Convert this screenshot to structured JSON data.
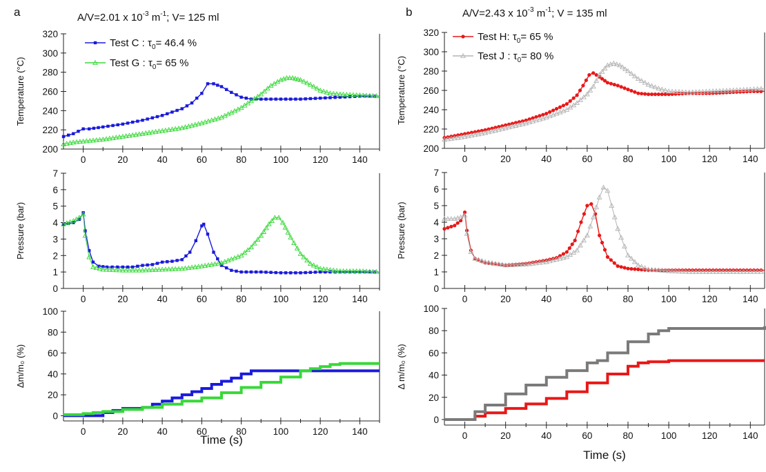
{
  "figure": {
    "left_panel_letter": "a",
    "right_panel_letter": "b",
    "left_header_parts": [
      "A/V=2.01 x 10",
      "-3",
      " m",
      "-1",
      "; V= 125 ml"
    ],
    "right_header_parts": [
      "A/V=2.43 x 10",
      "-3",
      " m",
      "-1",
      "; V = 135 ml"
    ]
  },
  "colors": {
    "test_C": "#1a1adc",
    "test_G": "#38d838",
    "test_H": "#e81818",
    "test_J": "#b4b4b4",
    "test_J_mass": "#7a7a7a",
    "axis": "#222222"
  },
  "chart_data": [
    {
      "id": "a-temperature",
      "type": "line",
      "xlabel": "",
      "ylabel": "Temperature (°C)",
      "xlim": [
        -10,
        150
      ],
      "ylim": [
        200,
        320
      ],
      "xticks": [
        "0",
        "20",
        "40",
        "60",
        "80",
        "100",
        "120",
        "140"
      ],
      "yticks": [
        "200",
        "220",
        "240",
        "260",
        "280",
        "300",
        "320"
      ],
      "legend": [
        {
          "prefix": "Test C : τ",
          "sub": "0",
          "suffix": "= 46.4 %"
        },
        {
          "prefix": "Test G : τ",
          "sub": "0",
          "suffix": "= 65 %"
        }
      ],
      "series": [
        {
          "name": "Test C",
          "color_key": "test_C",
          "marker": "square",
          "x": [
            -10,
            -5,
            0,
            3,
            10,
            20,
            30,
            40,
            50,
            55,
            60,
            63,
            66,
            70,
            75,
            80,
            85,
            90,
            100,
            110,
            120,
            130,
            140,
            150
          ],
          "y": [
            213,
            216,
            221,
            221,
            223,
            226,
            230,
            235,
            242,
            248,
            258,
            268,
            268,
            265,
            259,
            254,
            252,
            252,
            252,
            252,
            253,
            254,
            255,
            255
          ]
        },
        {
          "name": "Test G",
          "color_key": "test_G",
          "marker": "triangle",
          "x": [
            -10,
            -5,
            0,
            10,
            20,
            30,
            40,
            50,
            60,
            70,
            80,
            85,
            90,
            95,
            100,
            103,
            106,
            110,
            115,
            120,
            125,
            130,
            140,
            150
          ],
          "y": [
            205,
            207,
            208,
            210,
            213,
            216,
            219,
            222,
            227,
            233,
            243,
            250,
            257,
            266,
            272,
            274,
            274,
            272,
            267,
            261,
            258,
            257,
            256,
            255
          ]
        }
      ]
    },
    {
      "id": "a-pressure",
      "type": "line",
      "xlabel": "",
      "ylabel": "Pressure (bar)",
      "xlim": [
        -10,
        150
      ],
      "ylim": [
        0,
        7
      ],
      "xticks": [
        "0",
        "20",
        "40",
        "60",
        "80",
        "100",
        "120",
        "140"
      ],
      "yticks": [
        "0",
        "1",
        "2",
        "3",
        "4",
        "5",
        "6",
        "7"
      ],
      "series": [
        {
          "name": "Test C",
          "color_key": "test_C",
          "marker": "square",
          "x": [
            -10,
            -5,
            -2,
            0,
            1,
            3,
            5,
            8,
            12,
            20,
            25,
            30,
            35,
            40,
            45,
            50,
            54,
            57,
            60,
            61,
            63,
            66,
            70,
            75,
            80,
            90,
            100,
            110,
            120,
            130,
            140,
            150
          ],
          "y": [
            3.9,
            4.0,
            4.2,
            4.6,
            3.5,
            2.3,
            1.6,
            1.35,
            1.3,
            1.3,
            1.3,
            1.4,
            1.45,
            1.6,
            1.65,
            1.75,
            2.2,
            2.9,
            3.8,
            3.9,
            3.3,
            2.2,
            1.4,
            1.1,
            1.0,
            1.0,
            0.95,
            0.95,
            1.0,
            1.0,
            1.0,
            1.0
          ]
        },
        {
          "name": "Test G",
          "color_key": "test_G",
          "marker": "triangle",
          "x": [
            -10,
            -5,
            -2,
            0,
            1,
            3,
            5,
            10,
            20,
            30,
            40,
            50,
            60,
            70,
            80,
            85,
            90,
            94,
            97,
            99,
            101,
            105,
            110,
            115,
            120,
            130,
            140,
            150
          ],
          "y": [
            3.9,
            4.1,
            4.3,
            4.5,
            3.2,
            1.9,
            1.3,
            1.15,
            1.1,
            1.1,
            1.15,
            1.2,
            1.35,
            1.55,
            2.0,
            2.5,
            3.2,
            3.9,
            4.3,
            4.3,
            4.0,
            3.1,
            2.1,
            1.5,
            1.2,
            1.05,
            1.05,
            1.0
          ]
        }
      ]
    },
    {
      "id": "a-mass",
      "type": "line",
      "xlabel": "Time (s)",
      "ylabel": "Δm/m₀ (%)",
      "xlim": [
        -10,
        150
      ],
      "ylim": [
        -5,
        100
      ],
      "xticks": [
        "0",
        "20",
        "40",
        "60",
        "80",
        "100",
        "120",
        "140"
      ],
      "yticks": [
        "0",
        "20",
        "40",
        "60",
        "80",
        "100"
      ],
      "series": [
        {
          "name": "Test C",
          "color_key": "test_C",
          "marker": "step",
          "x": [
            -10,
            0,
            10,
            15,
            20,
            30,
            35,
            40,
            45,
            50,
            55,
            60,
            65,
            70,
            75,
            80,
            85,
            90,
            100,
            110,
            120,
            130,
            140,
            150
          ],
          "y": [
            0,
            0,
            3,
            5,
            7,
            8,
            11,
            14,
            17,
            20,
            23,
            26,
            30,
            33,
            36,
            40,
            43,
            43,
            43,
            43,
            43,
            43,
            43,
            43
          ]
        },
        {
          "name": "Test G",
          "color_key": "test_G",
          "marker": "step",
          "x": [
            -10,
            0,
            5,
            10,
            20,
            30,
            40,
            50,
            60,
            70,
            80,
            90,
            100,
            110,
            115,
            120,
            125,
            130,
            140,
            150
          ],
          "y": [
            1,
            2,
            3,
            4,
            6,
            8,
            11,
            14,
            17,
            22,
            27,
            32,
            37,
            43,
            45,
            47,
            49,
            50,
            50,
            50
          ]
        }
      ]
    },
    {
      "id": "b-temperature",
      "type": "line",
      "xlabel": "",
      "ylabel": "Temperature (°C)",
      "xlim": [
        -10,
        147
      ],
      "ylim": [
        200,
        320
      ],
      "xticks": [
        "0",
        "20",
        "40",
        "60",
        "80",
        "100",
        "120",
        "140"
      ],
      "yticks": [
        "200",
        "220",
        "240",
        "260",
        "280",
        "300",
        "320"
      ],
      "legend": [
        {
          "prefix": "Test H: τ",
          "sub": "0",
          "suffix": "= 65 %"
        },
        {
          "prefix": "Test J : τ",
          "sub": "0",
          "suffix": "= 80 %"
        }
      ],
      "series": [
        {
          "name": "Test H",
          "color_key": "test_H",
          "marker": "circle",
          "x": [
            -10,
            0,
            10,
            20,
            30,
            40,
            50,
            55,
            58,
            61,
            63,
            66,
            70,
            75,
            80,
            85,
            90,
            100,
            110,
            120,
            130,
            140,
            147
          ],
          "y": [
            211,
            215,
            219,
            224,
            229,
            236,
            246,
            255,
            265,
            276,
            278,
            274,
            268,
            265,
            261,
            257,
            256,
            256,
            257,
            257,
            258,
            259,
            259
          ]
        },
        {
          "name": "Test J",
          "color_key": "test_J",
          "marker": "triangle",
          "x": [
            -10,
            0,
            10,
            20,
            30,
            40,
            50,
            55,
            60,
            63,
            66,
            70,
            73,
            76,
            80,
            85,
            90,
            95,
            100,
            110,
            120,
            130,
            140,
            147
          ],
          "y": [
            209,
            212,
            216,
            221,
            226,
            232,
            240,
            247,
            256,
            264,
            276,
            286,
            288,
            286,
            280,
            272,
            266,
            262,
            259,
            258,
            259,
            260,
            261,
            262
          ]
        }
      ]
    },
    {
      "id": "b-pressure",
      "type": "line",
      "xlabel": "",
      "ylabel": "Pressure (bar)",
      "xlim": [
        -10,
        147
      ],
      "ylim": [
        0,
        7
      ],
      "xticks": [
        "0",
        "20",
        "40",
        "60",
        "80",
        "100",
        "120",
        "140"
      ],
      "yticks": [
        "0",
        "1",
        "2",
        "3",
        "4",
        "5",
        "6",
        "7"
      ],
      "series": [
        {
          "name": "Test H",
          "color_key": "test_H",
          "marker": "circle",
          "x": [
            -10,
            -5,
            -2,
            0,
            1,
            3,
            5,
            10,
            20,
            30,
            40,
            45,
            50,
            54,
            57,
            60,
            62,
            64,
            66,
            70,
            75,
            80,
            90,
            100,
            110,
            120,
            130,
            140,
            147
          ],
          "y": [
            3.6,
            3.8,
            4.1,
            4.6,
            3.5,
            2.3,
            1.8,
            1.55,
            1.4,
            1.5,
            1.7,
            1.85,
            2.2,
            2.9,
            4.0,
            5.0,
            5.1,
            4.5,
            3.2,
            1.9,
            1.35,
            1.2,
            1.1,
            1.1,
            1.1,
            1.1,
            1.1,
            1.1,
            1.1
          ]
        },
        {
          "name": "Test J",
          "color_key": "test_J",
          "marker": "triangle",
          "x": [
            -10,
            -5,
            -2,
            0,
            1,
            3,
            5,
            10,
            20,
            30,
            40,
            50,
            55,
            60,
            63,
            66,
            68,
            70,
            72,
            75,
            80,
            85,
            90,
            100,
            110,
            120,
            130,
            140,
            147
          ],
          "y": [
            4.2,
            4.2,
            4.3,
            4.4,
            3.3,
            2.2,
            1.8,
            1.6,
            1.4,
            1.45,
            1.6,
            1.9,
            2.3,
            3.2,
            4.3,
            5.5,
            6.1,
            5.9,
            5.0,
            3.6,
            2.0,
            1.4,
            1.15,
            1.05,
            1.0,
            1.0,
            1.0,
            1.0,
            1.0
          ]
        }
      ]
    },
    {
      "id": "b-mass",
      "type": "line",
      "xlabel": "Time (s)",
      "ylabel": "Δ m/m₀ (%)",
      "xlim": [
        -10,
        147
      ],
      "ylim": [
        -5,
        100
      ],
      "xticks": [
        "0",
        "20",
        "40",
        "60",
        "80",
        "100",
        "120",
        "140"
      ],
      "yticks": [
        "0",
        "20",
        "40",
        "60",
        "80",
        "100"
      ],
      "series": [
        {
          "name": "Test H",
          "color_key": "test_H",
          "marker": "step",
          "x": [
            -10,
            0,
            5,
            10,
            20,
            30,
            40,
            50,
            60,
            70,
            80,
            85,
            90,
            100,
            110,
            120,
            130,
            140,
            147
          ],
          "y": [
            0,
            0,
            3,
            6,
            10,
            14,
            19,
            25,
            33,
            41,
            48,
            51,
            52,
            53,
            53,
            53,
            53,
            53,
            53
          ]
        },
        {
          "name": "Test J",
          "color_key": "test_J_mass",
          "marker": "step",
          "x": [
            -10,
            0,
            5,
            10,
            20,
            30,
            40,
            50,
            60,
            65,
            70,
            80,
            90,
            95,
            100,
            110,
            120,
            130,
            140,
            147
          ],
          "y": [
            0,
            0,
            7,
            13,
            23,
            31,
            38,
            44,
            51,
            53,
            60,
            70,
            77,
            80,
            82,
            82,
            82,
            82,
            82,
            84
          ]
        }
      ]
    }
  ]
}
